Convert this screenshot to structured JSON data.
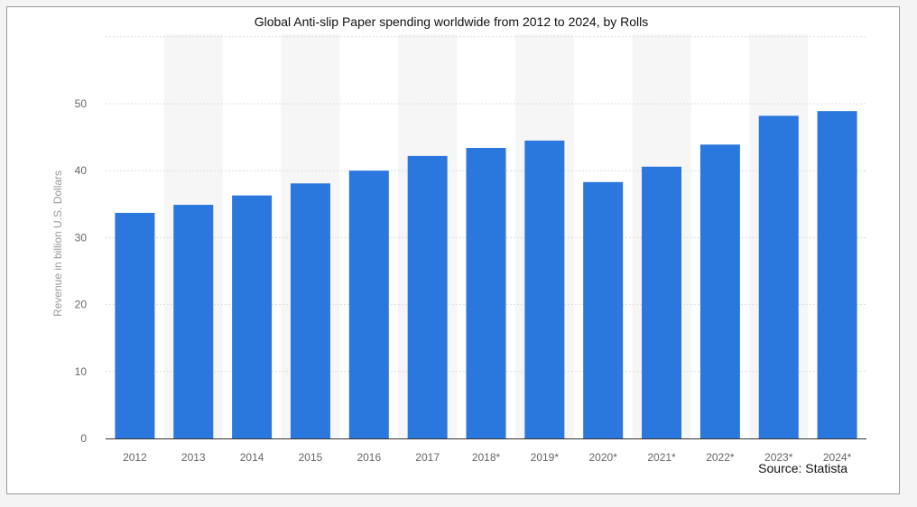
{
  "chart_data": {
    "type": "bar",
    "title": "Global Anti-slip Paper spending worldwide from 2012 to 2024, by Rolls",
    "xlabel": "",
    "ylabel": "Revenue in billion U.S. Dollars",
    "categories": [
      "2012",
      "2013",
      "2014",
      "2015",
      "2016",
      "2017",
      "2018*",
      "2019*",
      "2020*",
      "2021*",
      "2022*",
      "2023*",
      "2024*"
    ],
    "values": [
      33.7,
      34.9,
      36.3,
      38.1,
      40.0,
      42.2,
      43.4,
      44.5,
      38.3,
      40.6,
      43.9,
      48.2,
      48.9
    ],
    "ylim": [
      0,
      60
    ],
    "yticks": [
      0,
      10,
      20,
      30,
      40,
      50
    ],
    "grid": true,
    "legend": "none",
    "colors": {
      "bar": "#2a77de",
      "band": "#f6f6f6",
      "grid": "#dcdcdc"
    }
  },
  "source": "Source: Statista"
}
